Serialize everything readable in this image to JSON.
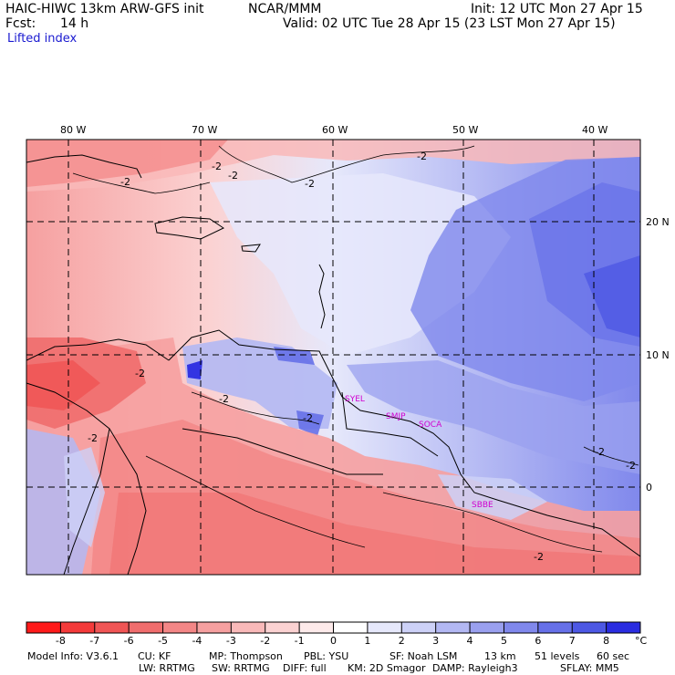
{
  "header": {
    "model_title": "HAIC-HIWC 13km ARW-GFS init",
    "org": "NCAR/MMM",
    "init": "Init: 12 UTC Mon 27 Apr 15",
    "fcst_label": "Fcst:",
    "fcst_value": "14 h",
    "valid": "Valid: 02 UTC Tue 28 Apr 15 (23 LST Mon 27 Apr 15)",
    "field": "Lifted index"
  },
  "map": {
    "lon_labels": [
      "80 W",
      "70 W",
      "60 W",
      "50 W",
      "40 W"
    ],
    "lat_labels": [
      "20 N",
      "10 N",
      "0"
    ],
    "contour_labels": [
      "-2",
      "-2",
      "-2",
      "-2",
      "-2",
      "-2",
      "-2",
      "-2",
      "-2",
      "-2",
      "-2",
      "-2"
    ],
    "stations": [
      "SYEL",
      "SMJP",
      "SOCA",
      "SBBE"
    ]
  },
  "colorbar": {
    "ticks": [
      "-8",
      "-7",
      "-6",
      "-5",
      "-4",
      "-3",
      "-2",
      "-1",
      "0",
      "1",
      "2",
      "3",
      "4",
      "5",
      "6",
      "7",
      "8"
    ],
    "unit": "°C",
    "colors": [
      "#ff1a1a",
      "#f43a3a",
      "#f05555",
      "#f06d6d",
      "#f38686",
      "#f6a0a0",
      "#f9b9b9",
      "#fbd2d2",
      "#fdeaea",
      "#ffffff",
      "#e6e8fb",
      "#cdd1f7",
      "#b3b8f3",
      "#9aa0ef",
      "#8088ec",
      "#6670e8",
      "#4d58e4",
      "#2a2ce0"
    ]
  },
  "footer": {
    "line1": [
      "Model Info: V3.6.1",
      "CU: KF",
      "MP: Thompson",
      "PBL: YSU",
      "SF: Noah LSM",
      "13 km",
      "51 levels",
      "60 sec"
    ],
    "line2": [
      "LW: RRTMG",
      "SW: RRTMG",
      "DIFF: full",
      "KM: 2D Smagor",
      "DAMP: Rayleigh3",
      "SFLAY: MM5"
    ]
  }
}
